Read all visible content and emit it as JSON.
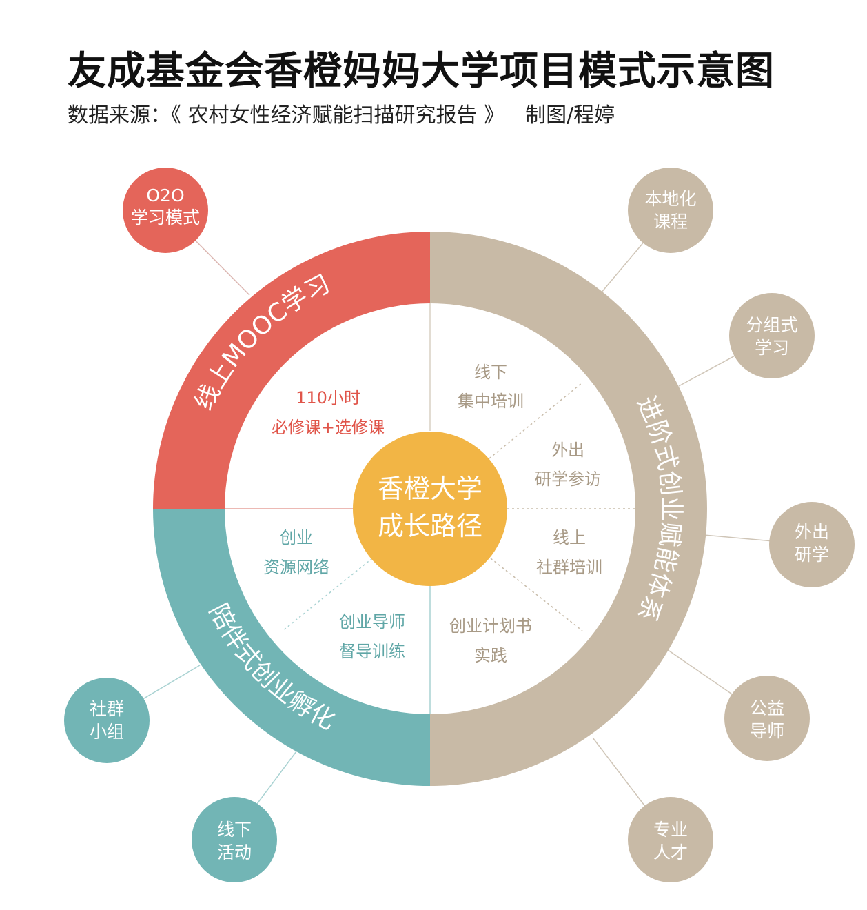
{
  "header": {
    "title": "友成基金会香橙妈妈大学项目模式示意图",
    "source": "数据来源：《 农村女性经济赋能扫描研究报告 》",
    "credit": "制图/程婷"
  },
  "center": {
    "line1": "香橙大学",
    "line2": "成长路径"
  },
  "ring": {
    "online": "线上MOOC学习",
    "progressive": "进阶式创业赋能体系",
    "companion": "陪伴式创业孵化"
  },
  "inner": {
    "courses": {
      "line1": "110小时",
      "line2": "必修课+选修课"
    },
    "offline_training": {
      "line1": "线下",
      "line2": "集中培训"
    },
    "study_tour": {
      "line1": "外出",
      "line2": "研学参访"
    },
    "online_community": {
      "line1": "线上",
      "line2": "社群培训"
    },
    "business_plan": {
      "line1": "创业计划书",
      "line2": "实践"
    },
    "mentor": {
      "line1": "创业导师",
      "line2": "督导训练"
    },
    "resources": {
      "line1": "创业",
      "line2": "资源网络"
    }
  },
  "bubbles": {
    "o2o": {
      "line1": "O2O",
      "line2": "学习模式"
    },
    "local_course": {
      "line1": "本地化",
      "line2": "课程"
    },
    "group_study": {
      "line1": "分组式",
      "line2": "学习"
    },
    "outbound_study": {
      "line1": "外出",
      "line2": "研学"
    },
    "public_mentor": {
      "line1": "公益",
      "line2": "导师"
    },
    "talent": {
      "line1": "专业",
      "line2": "人才"
    },
    "community_group": {
      "line1": "社群",
      "line2": "小组"
    },
    "offline_activity": {
      "line1": "线下",
      "line2": "活动"
    }
  },
  "colors": {
    "red": "#E4655A",
    "tan": "#C8BAA6",
    "teal": "#72B5B5",
    "orange": "#F2B545",
    "red_text": "#E0554A",
    "tan_text": "#A89A86",
    "teal_text": "#5FA6A6"
  }
}
